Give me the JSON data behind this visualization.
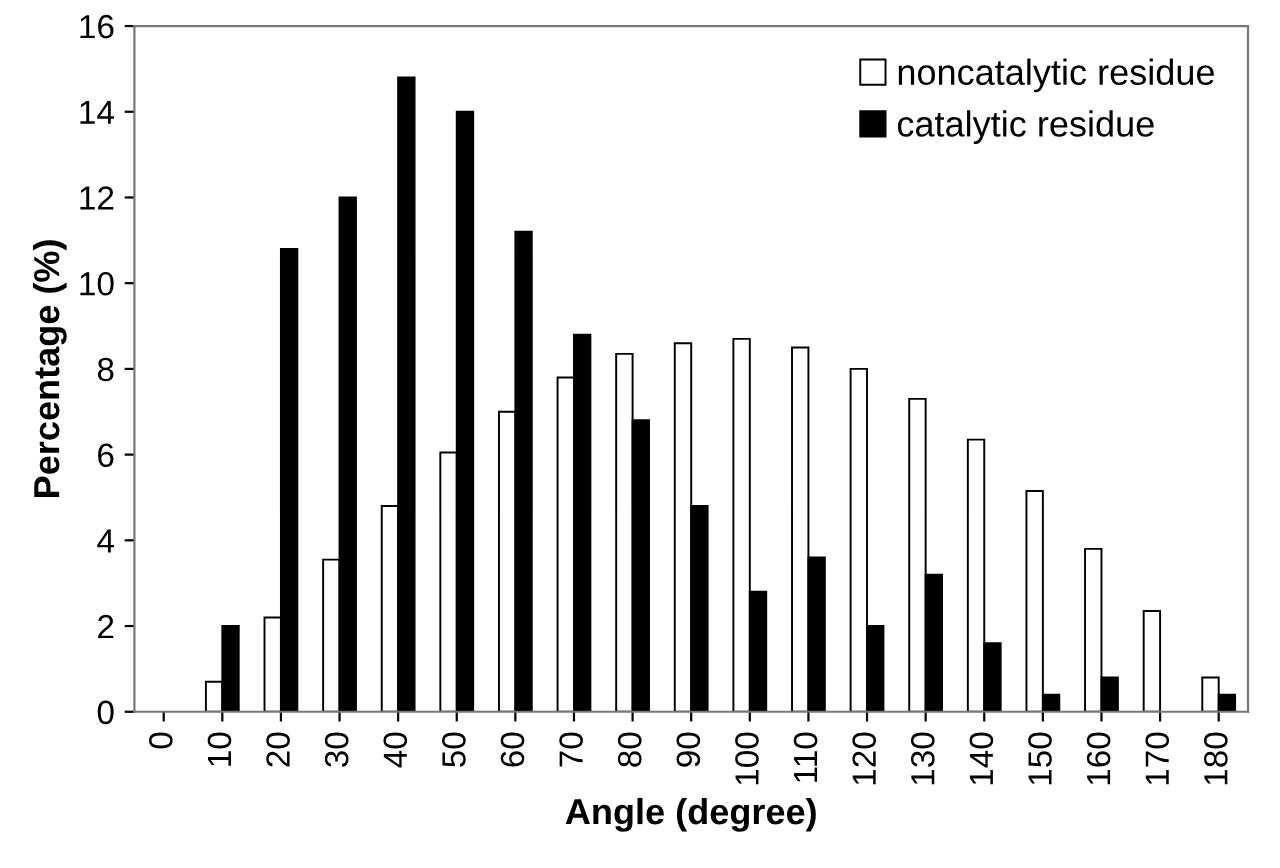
{
  "chart_data": {
    "type": "bar",
    "xlabel": "Angle (degree)",
    "ylabel": "Percentage (%)",
    "categories": [
      "0",
      "10",
      "20",
      "30",
      "40",
      "50",
      "60",
      "70",
      "80",
      "90",
      "100",
      "110",
      "120",
      "130",
      "140",
      "150",
      "160",
      "170",
      "180"
    ],
    "series": [
      {
        "name": "noncatalytic residue",
        "color": "#ffffff",
        "values": [
          null,
          0.7,
          2.2,
          3.55,
          4.8,
          6.05,
          7.0,
          7.8,
          8.35,
          8.6,
          8.7,
          8.5,
          8.0,
          7.3,
          6.35,
          5.15,
          3.8,
          2.35,
          0.8
        ]
      },
      {
        "name": "catalytic residue",
        "color": "#000000",
        "values": [
          null,
          2.0,
          10.8,
          12.0,
          14.8,
          14.0,
          11.2,
          8.8,
          6.8,
          4.8,
          2.8,
          3.6,
          2.0,
          3.2,
          1.6,
          0.4,
          0.8,
          null,
          0.4
        ]
      }
    ],
    "ylim": [
      0,
      16
    ],
    "yticks": [
      0,
      2,
      4,
      6,
      8,
      10,
      12,
      14,
      16
    ],
    "grid": false,
    "legend": "top right"
  }
}
